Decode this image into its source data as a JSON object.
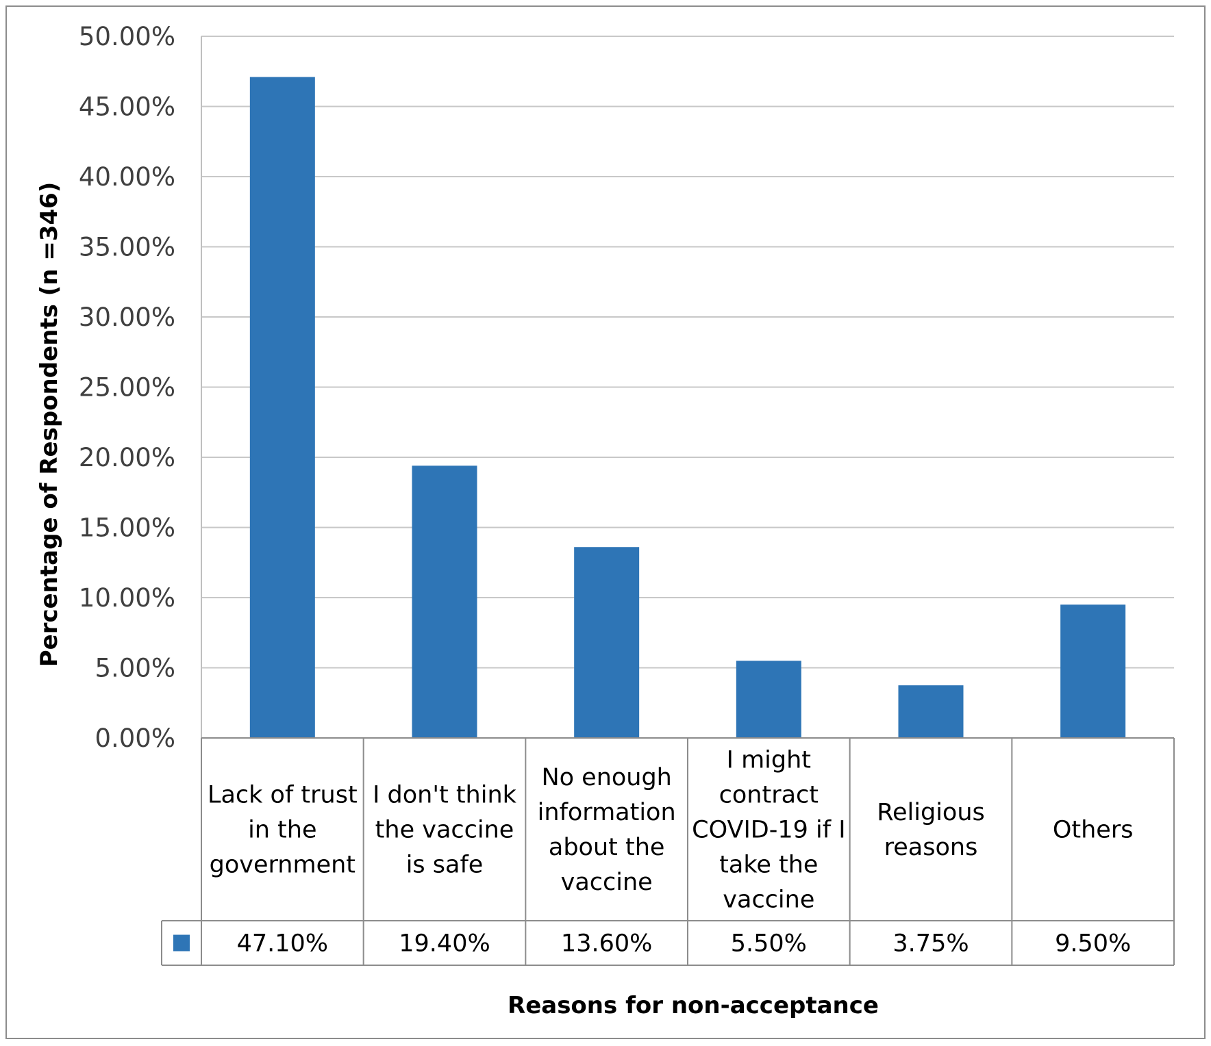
{
  "chart_data": {
    "type": "bar",
    "title": "",
    "xlabel": "Reasons for non-acceptance",
    "ylabel": "Percentage of Respondents (n =346)",
    "ylim": [
      0,
      50
    ],
    "ytick_step": 5,
    "ytick_labels": [
      "0.00%",
      "5.00%",
      "10.00%",
      "15.00%",
      "20.00%",
      "25.00%",
      "30.00%",
      "35.00%",
      "40.00%",
      "45.00%",
      "50.00%"
    ],
    "grid": true,
    "legend": "data-table",
    "categories": [
      [
        "Lack of trust",
        "in the",
        "government"
      ],
      [
        "I don't think",
        "the vaccine",
        "is safe"
      ],
      [
        "No enough",
        "information",
        "about the",
        "vaccine"
      ],
      [
        "I might",
        "contract",
        "COVID-19 if I",
        "take the",
        "vaccine"
      ],
      [
        "Religious",
        "reasons"
      ],
      [
        "Others"
      ]
    ],
    "series": [
      {
        "values": [
          47.1,
          19.4,
          13.6,
          5.5,
          3.75,
          9.5
        ],
        "value_labels": [
          "47.10%",
          "19.40%",
          "13.60%",
          "5.50%",
          "3.75%",
          "9.50%"
        ],
        "color": "#2e75b6"
      }
    ]
  }
}
